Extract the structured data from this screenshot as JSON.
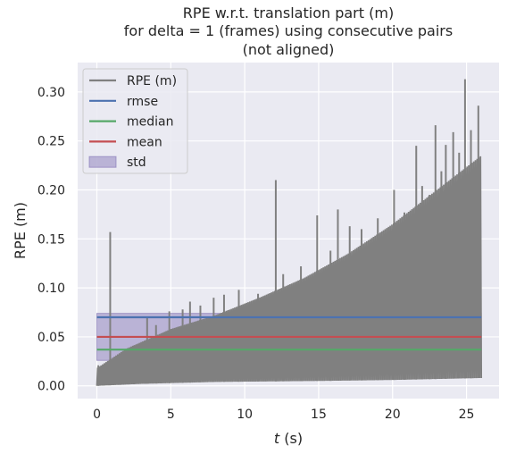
{
  "chart_data": {
    "type": "line",
    "title": [
      "RPE w.r.t. translation part (m)",
      "for delta = 1 (frames) using consecutive pairs",
      "(not aligned)"
    ],
    "xlabel_italic": "t",
    "xlabel_rest": " (s)",
    "ylabel": "RPE (m)",
    "xlim": [
      -1.3,
      27.2
    ],
    "ylim": [
      -0.013,
      0.33
    ],
    "xticks": [
      0,
      5,
      10,
      15,
      20,
      25
    ],
    "yticks": [
      "0.00",
      "0.05",
      "0.10",
      "0.15",
      "0.20",
      "0.25",
      "0.30"
    ],
    "ytick_values": [
      0.0,
      0.05,
      0.1,
      0.15,
      0.2,
      0.25,
      0.3
    ],
    "grid": true,
    "legend_position": "upper-left",
    "legend": [
      {
        "label": "RPE (m)",
        "kind": "line",
        "color": "#808080"
      },
      {
        "label": "rmse",
        "kind": "line",
        "color": "#4c72b0"
      },
      {
        "label": "median",
        "kind": "line",
        "color": "#55a868"
      },
      {
        "label": "mean",
        "kind": "line",
        "color": "#c44e52"
      },
      {
        "label": "std",
        "kind": "band",
        "color": "#8172b3"
      }
    ],
    "series": {
      "rpe": {
        "name": "RPE (m)",
        "color": "#808080",
        "t_range": [
          0.0,
          26.0
        ],
        "lower_envelope": {
          "x": [
            0,
            3,
            8,
            15,
            20,
            26
          ],
          "y": [
            0.0,
            0.002,
            0.004,
            0.005,
            0.006,
            0.008
          ]
        },
        "upper_envelope": {
          "x": [
            0,
            2,
            5,
            8,
            11,
            14,
            17,
            20,
            23,
            26
          ],
          "y": [
            0.018,
            0.038,
            0.058,
            0.072,
            0.09,
            0.11,
            0.135,
            0.165,
            0.2,
            0.235
          ]
        },
        "spikes": [
          {
            "t": 0.1,
            "v": 0.021
          },
          {
            "t": 0.9,
            "v": 0.157
          },
          {
            "t": 1.6,
            "v": 0.032
          },
          {
            "t": 2.5,
            "v": 0.041
          },
          {
            "t": 3.4,
            "v": 0.07
          },
          {
            "t": 4.0,
            "v": 0.062
          },
          {
            "t": 4.9,
            "v": 0.076
          },
          {
            "t": 5.8,
            "v": 0.078
          },
          {
            "t": 6.3,
            "v": 0.086
          },
          {
            "t": 7.0,
            "v": 0.082
          },
          {
            "t": 7.9,
            "v": 0.09
          },
          {
            "t": 8.6,
            "v": 0.093
          },
          {
            "t": 9.6,
            "v": 0.098
          },
          {
            "t": 10.9,
            "v": 0.094
          },
          {
            "t": 12.1,
            "v": 0.21
          },
          {
            "t": 12.6,
            "v": 0.114
          },
          {
            "t": 13.8,
            "v": 0.122
          },
          {
            "t": 14.9,
            "v": 0.174
          },
          {
            "t": 15.8,
            "v": 0.138
          },
          {
            "t": 16.3,
            "v": 0.18
          },
          {
            "t": 17.1,
            "v": 0.163
          },
          {
            "t": 17.9,
            "v": 0.16
          },
          {
            "t": 19.0,
            "v": 0.171
          },
          {
            "t": 20.1,
            "v": 0.2
          },
          {
            "t": 20.8,
            "v": 0.177
          },
          {
            "t": 21.6,
            "v": 0.245
          },
          {
            "t": 22.0,
            "v": 0.204
          },
          {
            "t": 22.5,
            "v": 0.195
          },
          {
            "t": 22.9,
            "v": 0.266
          },
          {
            "t": 23.3,
            "v": 0.219
          },
          {
            "t": 23.6,
            "v": 0.246
          },
          {
            "t": 24.1,
            "v": 0.259
          },
          {
            "t": 24.5,
            "v": 0.238
          },
          {
            "t": 24.9,
            "v": 0.313
          },
          {
            "t": 25.3,
            "v": 0.261
          },
          {
            "t": 25.8,
            "v": 0.286
          }
        ]
      },
      "rmse": {
        "name": "rmse",
        "value": 0.07,
        "color": "#4c72b0"
      },
      "median": {
        "name": "median",
        "value": 0.037,
        "color": "#55a868"
      },
      "mean": {
        "name": "mean",
        "value": 0.05,
        "color": "#c44e52"
      },
      "std": {
        "name": "std",
        "range": [
          0.026,
          0.074
        ],
        "color": "#8172b3"
      }
    }
  }
}
